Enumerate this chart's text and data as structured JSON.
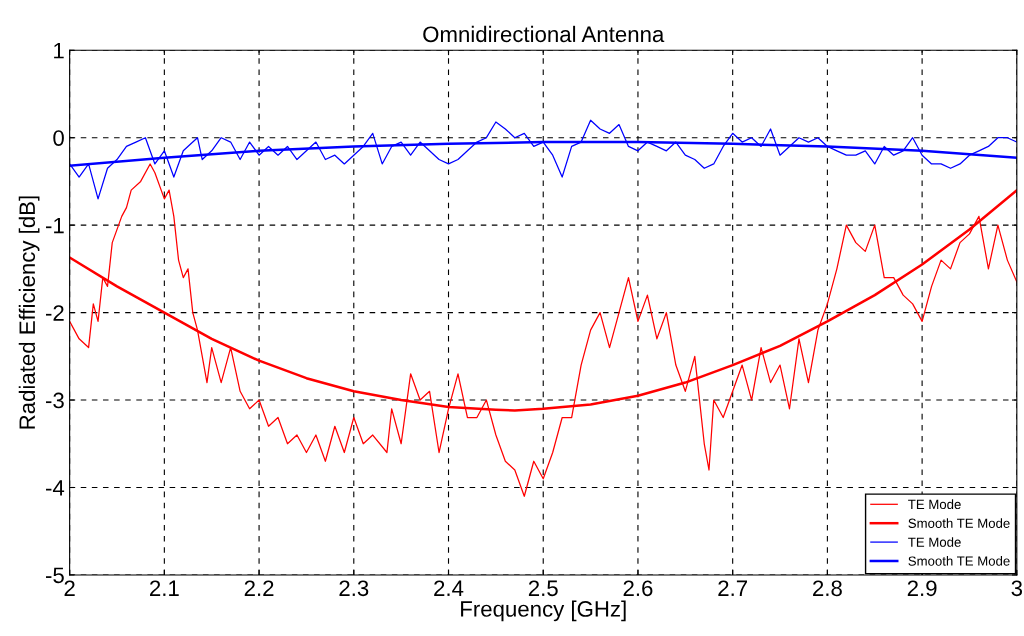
{
  "chart_data": {
    "type": "line",
    "title": "Omnidirectional Antenna",
    "xlabel": "Frequency [GHz]",
    "ylabel": "Radiated Efficiency [dB]",
    "xlim": [
      2,
      3
    ],
    "ylim": [
      -5,
      1
    ],
    "xticks": [
      2,
      2.1,
      2.2,
      2.3,
      2.4,
      2.5,
      2.6,
      2.7,
      2.8,
      2.9,
      3
    ],
    "yticks": [
      -5,
      -4,
      -3,
      -2,
      -1,
      0,
      1
    ],
    "grid": true,
    "legend": "bottom right",
    "line_style": "solid",
    "series": [
      {
        "name": "TE Mode",
        "color": "#ff0000",
        "x": [
          2.0,
          2.01,
          2.02,
          2.025,
          2.03,
          2.035,
          2.04,
          2.045,
          2.055,
          2.06,
          2.065,
          2.075,
          2.085,
          2.09,
          2.1,
          2.105,
          2.11,
          2.115,
          2.12,
          2.125,
          2.13,
          2.135,
          2.14,
          2.145,
          2.15,
          2.155,
          2.16,
          2.17,
          2.18,
          2.19,
          2.2,
          2.21,
          2.22,
          2.23,
          2.24,
          2.25,
          2.26,
          2.27,
          2.28,
          2.29,
          2.3,
          2.31,
          2.32,
          2.335,
          2.34,
          2.35,
          2.36,
          2.37,
          2.38,
          2.39,
          2.4,
          2.41,
          2.42,
          2.43,
          2.44,
          2.45,
          2.46,
          2.47,
          2.48,
          2.49,
          2.5,
          2.51,
          2.52,
          2.53,
          2.54,
          2.55,
          2.56,
          2.57,
          2.58,
          2.59,
          2.6,
          2.61,
          2.62,
          2.63,
          2.64,
          2.65,
          2.66,
          2.67,
          2.675,
          2.68,
          2.69,
          2.7,
          2.71,
          2.72,
          2.73,
          2.74,
          2.75,
          2.76,
          2.77,
          2.78,
          2.79,
          2.8,
          2.81,
          2.82,
          2.83,
          2.84,
          2.85,
          2.86,
          2.87,
          2.88,
          2.89,
          2.9,
          2.91,
          2.92,
          2.93,
          2.94,
          2.95,
          2.96,
          2.97,
          2.98,
          2.99,
          3.0
        ],
        "values": [
          -2.1,
          -2.3,
          -2.4,
          -1.9,
          -2.1,
          -1.6,
          -1.7,
          -1.2,
          -0.9,
          -0.8,
          -0.6,
          -0.5,
          -0.3,
          -0.4,
          -0.7,
          -0.6,
          -0.9,
          -1.4,
          -1.6,
          -1.5,
          -2.0,
          -2.2,
          -2.5,
          -2.8,
          -2.4,
          -2.6,
          -2.8,
          -2.4,
          -2.9,
          -3.1,
          -3.0,
          -3.3,
          -3.2,
          -3.5,
          -3.4,
          -3.6,
          -3.4,
          -3.7,
          -3.3,
          -3.6,
          -3.2,
          -3.5,
          -3.4,
          -3.6,
          -3.1,
          -3.5,
          -2.7,
          -3.0,
          -2.9,
          -3.6,
          -3.1,
          -2.7,
          -3.2,
          -3.2,
          -3.0,
          -3.4,
          -3.7,
          -3.8,
          -4.1,
          -3.7,
          -3.9,
          -3.6,
          -3.2,
          -3.2,
          -2.6,
          -2.2,
          -2.0,
          -2.4,
          -2.0,
          -1.6,
          -2.1,
          -1.8,
          -2.3,
          -2.0,
          -2.6,
          -2.9,
          -2.5,
          -3.5,
          -3.8,
          -3.0,
          -3.2,
          -2.9,
          -2.6,
          -3.0,
          -2.4,
          -2.8,
          -2.6,
          -3.1,
          -2.3,
          -2.8,
          -2.2,
          -1.9,
          -1.5,
          -1.0,
          -1.2,
          -1.3,
          -1.0,
          -1.6,
          -1.6,
          -1.8,
          -1.9,
          -2.1,
          -1.7,
          -1.4,
          -1.5,
          -1.2,
          -1.1,
          -0.9,
          -1.5,
          -1.0,
          -1.4,
          -1.65
        ]
      },
      {
        "name": "Smooth TE Mode",
        "color": "#ff0000",
        "x": [
          2.0,
          2.05,
          2.1,
          2.15,
          2.2,
          2.25,
          2.3,
          2.35,
          2.4,
          2.45,
          2.47,
          2.5,
          2.55,
          2.6,
          2.65,
          2.7,
          2.75,
          2.8,
          2.85,
          2.9,
          2.95,
          3.0
        ],
        "values": [
          -1.37,
          -1.7,
          -2.0,
          -2.3,
          -2.55,
          -2.75,
          -2.9,
          -3.0,
          -3.08,
          -3.11,
          -3.12,
          -3.1,
          -3.05,
          -2.95,
          -2.8,
          -2.6,
          -2.38,
          -2.1,
          -1.8,
          -1.45,
          -1.05,
          -0.6
        ]
      },
      {
        "name": "TE Mode",
        "color": "#0000ff",
        "x": [
          2.0,
          2.01,
          2.02,
          2.025,
          2.03,
          2.04,
          2.05,
          2.06,
          2.07,
          2.08,
          2.09,
          2.1,
          2.11,
          2.12,
          2.13,
          2.135,
          2.14,
          2.15,
          2.16,
          2.17,
          2.18,
          2.19,
          2.2,
          2.21,
          2.22,
          2.23,
          2.24,
          2.25,
          2.26,
          2.27,
          2.28,
          2.29,
          2.3,
          2.31,
          2.32,
          2.33,
          2.34,
          2.35,
          2.36,
          2.37,
          2.38,
          2.39,
          2.4,
          2.41,
          2.42,
          2.43,
          2.44,
          2.45,
          2.46,
          2.47,
          2.48,
          2.49,
          2.5,
          2.51,
          2.52,
          2.53,
          2.54,
          2.55,
          2.56,
          2.57,
          2.58,
          2.59,
          2.6,
          2.61,
          2.62,
          2.63,
          2.64,
          2.65,
          2.66,
          2.67,
          2.68,
          2.69,
          2.7,
          2.71,
          2.72,
          2.73,
          2.74,
          2.75,
          2.76,
          2.77,
          2.78,
          2.79,
          2.8,
          2.81,
          2.82,
          2.83,
          2.84,
          2.85,
          2.86,
          2.87,
          2.88,
          2.89,
          2.9,
          2.91,
          2.92,
          2.93,
          2.94,
          2.95,
          2.96,
          2.97,
          2.98,
          2.99,
          3.0
        ],
        "values": [
          -0.3,
          -0.45,
          -0.3,
          -0.5,
          -0.7,
          -0.35,
          -0.25,
          -0.1,
          -0.05,
          0.0,
          -0.3,
          -0.15,
          -0.45,
          -0.15,
          -0.05,
          0.0,
          -0.25,
          -0.15,
          0.0,
          -0.05,
          -0.25,
          -0.05,
          -0.2,
          -0.1,
          -0.2,
          -0.1,
          -0.25,
          -0.15,
          -0.05,
          -0.25,
          -0.2,
          -0.3,
          -0.2,
          -0.1,
          0.05,
          -0.3,
          -0.1,
          -0.05,
          -0.2,
          -0.05,
          -0.15,
          -0.25,
          -0.3,
          -0.25,
          -0.15,
          -0.05,
          0.0,
          0.18,
          0.1,
          0.0,
          0.05,
          -0.1,
          -0.05,
          -0.2,
          -0.45,
          -0.1,
          -0.05,
          0.2,
          0.1,
          0.05,
          0.15,
          -0.1,
          -0.15,
          -0.05,
          -0.1,
          -0.15,
          -0.05,
          -0.2,
          -0.25,
          -0.35,
          -0.3,
          -0.1,
          0.05,
          -0.05,
          0.0,
          -0.1,
          0.1,
          -0.2,
          -0.1,
          0.0,
          -0.05,
          0.0,
          -0.1,
          -0.15,
          -0.2,
          -0.2,
          -0.15,
          -0.3,
          -0.1,
          -0.2,
          -0.15,
          0.0,
          -0.2,
          -0.3,
          -0.3,
          -0.35,
          -0.3,
          -0.2,
          -0.15,
          -0.1,
          0.0,
          0.0,
          -0.05
        ]
      },
      {
        "name": "Smooth TE Mode",
        "color": "#0000ff",
        "x": [
          2.0,
          2.1,
          2.2,
          2.3,
          2.4,
          2.5,
          2.6,
          2.7,
          2.8,
          2.9,
          3.0
        ],
        "values": [
          -0.32,
          -0.23,
          -0.15,
          -0.1,
          -0.07,
          -0.05,
          -0.05,
          -0.07,
          -0.1,
          -0.15,
          -0.23
        ]
      }
    ]
  }
}
